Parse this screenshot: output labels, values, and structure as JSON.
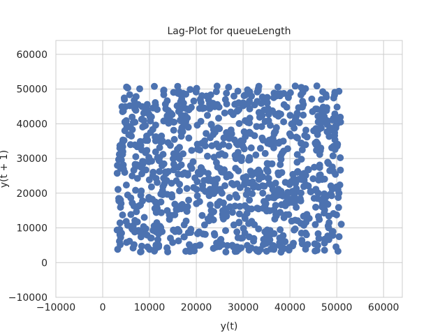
{
  "chart_data": {
    "type": "scatter",
    "title": "Lag-Plot for queueLength",
    "xlabel": "y(t)",
    "ylabel": "y(t + 1)",
    "xlim": [
      -10000,
      64000
    ],
    "ylim": [
      -10000,
      64000
    ],
    "xticks": [
      -10000,
      0,
      10000,
      20000,
      30000,
      40000,
      50000,
      60000
    ],
    "yticks": [
      -10000,
      0,
      10000,
      20000,
      30000,
      40000,
      50000,
      60000
    ],
    "xtick_labels": [
      "−10000",
      "0",
      "10000",
      "20000",
      "30000",
      "40000",
      "50000",
      "60000"
    ],
    "ytick_labels": [
      "−10000",
      "0",
      "10000",
      "20000",
      "30000",
      "40000",
      "50000",
      "60000"
    ],
    "grid": true,
    "marker_color": "#4c72b0",
    "series": [
      {
        "points_count": 1000,
        "x_range": [
          3000,
          51000
        ],
        "y_range": [
          3000,
          51000
        ],
        "distribution": "uniform"
      }
    ]
  },
  "colors": {
    "grid": "#cccccc",
    "spine": "#cccccc",
    "background": "#ffffff",
    "text": "#262626"
  }
}
